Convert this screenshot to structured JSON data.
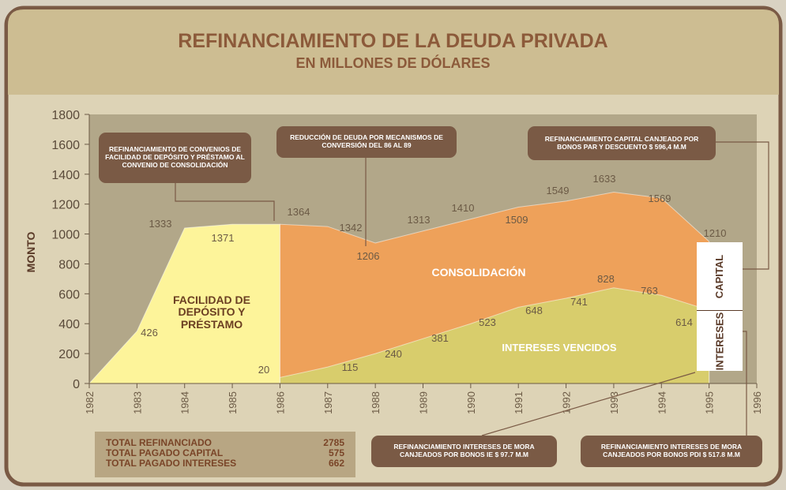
{
  "header": {
    "title": "REFINANCIAMIENTO DE LA DEUDA PRIVADA",
    "subtitle": "EN MILLONES DE DÓLARES"
  },
  "chart_data": {
    "type": "area",
    "x": [
      1982,
      1983,
      1984,
      1985,
      1986,
      1987,
      1988,
      1989,
      1990,
      1991,
      1992,
      1993,
      1994,
      1995
    ],
    "xlim": [
      1982,
      1996
    ],
    "xticks": [
      1982,
      1983,
      1984,
      1985,
      1986,
      1987,
      1988,
      1989,
      1990,
      1991,
      1992,
      1993,
      1994,
      1995,
      1996
    ],
    "ylim": [
      0,
      1800
    ],
    "yticks": [
      0,
      200,
      400,
      600,
      800,
      1000,
      1200,
      1400,
      1600,
      1800
    ],
    "ylabel": "MONTO",
    "series": [
      {
        "name": "FACILIDAD DE DEPÓSITO Y PRÉSTAMO",
        "color": "#fdf49a",
        "values": [
          0,
          350,
          1040,
          1065,
          1065,
          null,
          null,
          null,
          null,
          null,
          null,
          null,
          null,
          null
        ]
      },
      {
        "name": "CONSOLIDACIÓN",
        "color": "#eea15a",
        "values": [
          null,
          null,
          null,
          null,
          1065,
          1050,
          940,
          1020,
          1100,
          1180,
          1220,
          1280,
          1240,
          950
        ]
      },
      {
        "name": "INTERESES VENCIDOS",
        "color": "#d8cd6c",
        "values": [
          null,
          null,
          null,
          null,
          40,
          110,
          200,
          300,
          400,
          510,
          570,
          640,
          590,
          490
        ]
      }
    ],
    "data_labels": [
      1333,
      426,
      1371,
      20,
      1364,
      1342,
      1206,
      1313,
      1410,
      1509,
      1549,
      1633,
      1569,
      1210,
      115,
      240,
      381,
      523,
      648,
      741,
      828,
      763,
      614
    ],
    "side_labels": [
      "CAPITAL",
      "INTERESES"
    ]
  },
  "callouts": [
    "REFINANCIAMIENTO DE CONVENIOS DE FACILIDAD DE DEPÓSITO Y PRÉSTAMO AL CONVENIO DE CONSOLIDACIÓN",
    "REDUCCIÓN DE DEUDA POR MECANISMOS DE CONVERSIÓN DEL 86 AL 89",
    "REFINANCIAMIENTO CAPITAL CANJEADO POR BONOS PAR Y DESCUENTO $ 596,4 M.M",
    "REFINANCIAMIENTO INTERESES DE MORA CANJEADOS POR BONOS IE $ 97.7 M.M",
    "REFINANCIAMIENTO INTERESES DE MORA CANJEADOS POR BONOS PDI $ 517.8 M.M"
  ],
  "summary": {
    "rows": [
      [
        "TOTAL REFINANCIADO",
        2785
      ],
      [
        "TOTAL PAGADO CAPITAL",
        575
      ],
      [
        "TOTAL PAGADO INTERESES",
        662
      ]
    ]
  }
}
